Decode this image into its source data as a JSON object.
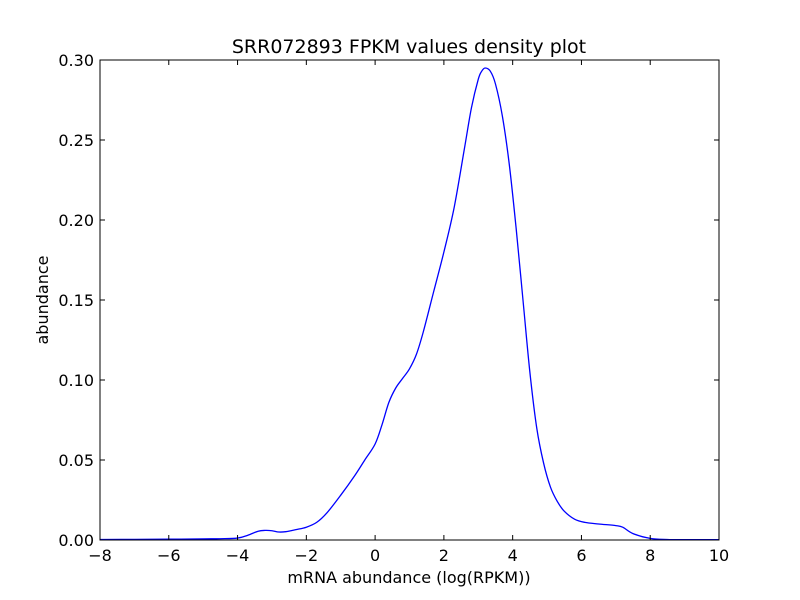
{
  "chart_data": {
    "type": "line",
    "title": "SRR072893 FPKM values density plot",
    "xlabel": "mRNA abundance (log(RPKM))",
    "ylabel": "abundance",
    "xlim": [
      -8,
      10
    ],
    "ylim": [
      0.0,
      0.3
    ],
    "xticks": [
      -8,
      -6,
      -4,
      -2,
      0,
      2,
      4,
      6,
      8,
      10
    ],
    "xtick_labels": [
      "−8",
      "−6",
      "−4",
      "−2",
      "0",
      "2",
      "4",
      "6",
      "8",
      "10"
    ],
    "yticks": [
      0.0,
      0.05,
      0.1,
      0.15,
      0.2,
      0.25,
      0.3
    ],
    "ytick_labels": [
      "0.00",
      "0.05",
      "0.10",
      "0.15",
      "0.20",
      "0.25",
      "0.30"
    ],
    "grid": false,
    "legend": "none",
    "series": [
      {
        "color": "#0000ff",
        "x": [
          -8.0,
          -7.0,
          -6.0,
          -5.0,
          -4.5,
          -4.0,
          -3.7,
          -3.4,
          -3.2,
          -3.0,
          -2.8,
          -2.6,
          -2.3,
          -2.0,
          -1.7,
          -1.4,
          -1.0,
          -0.6,
          -0.3,
          0.0,
          0.2,
          0.4,
          0.6,
          0.8,
          1.0,
          1.2,
          1.4,
          1.7,
          2.0,
          2.3,
          2.6,
          2.8,
          3.0,
          3.1,
          3.2,
          3.35,
          3.5,
          3.7,
          3.9,
          4.1,
          4.3,
          4.5,
          4.7,
          4.9,
          5.1,
          5.3,
          5.5,
          5.8,
          6.1,
          6.5,
          7.0,
          7.2,
          7.5,
          8.0,
          8.5,
          9.0,
          10.0
        ],
        "y": [
          0.0003,
          0.0004,
          0.0005,
          0.0007,
          0.0008,
          0.0012,
          0.003,
          0.0055,
          0.006,
          0.0058,
          0.005,
          0.0052,
          0.0065,
          0.008,
          0.011,
          0.017,
          0.028,
          0.04,
          0.05,
          0.06,
          0.072,
          0.086,
          0.095,
          0.101,
          0.107,
          0.116,
          0.13,
          0.155,
          0.18,
          0.208,
          0.245,
          0.27,
          0.288,
          0.293,
          0.295,
          0.293,
          0.285,
          0.265,
          0.235,
          0.195,
          0.15,
          0.105,
          0.07,
          0.048,
          0.033,
          0.024,
          0.018,
          0.013,
          0.011,
          0.01,
          0.009,
          0.008,
          0.004,
          0.001,
          0.0003,
          0.0002,
          0.0002
        ]
      }
    ]
  }
}
